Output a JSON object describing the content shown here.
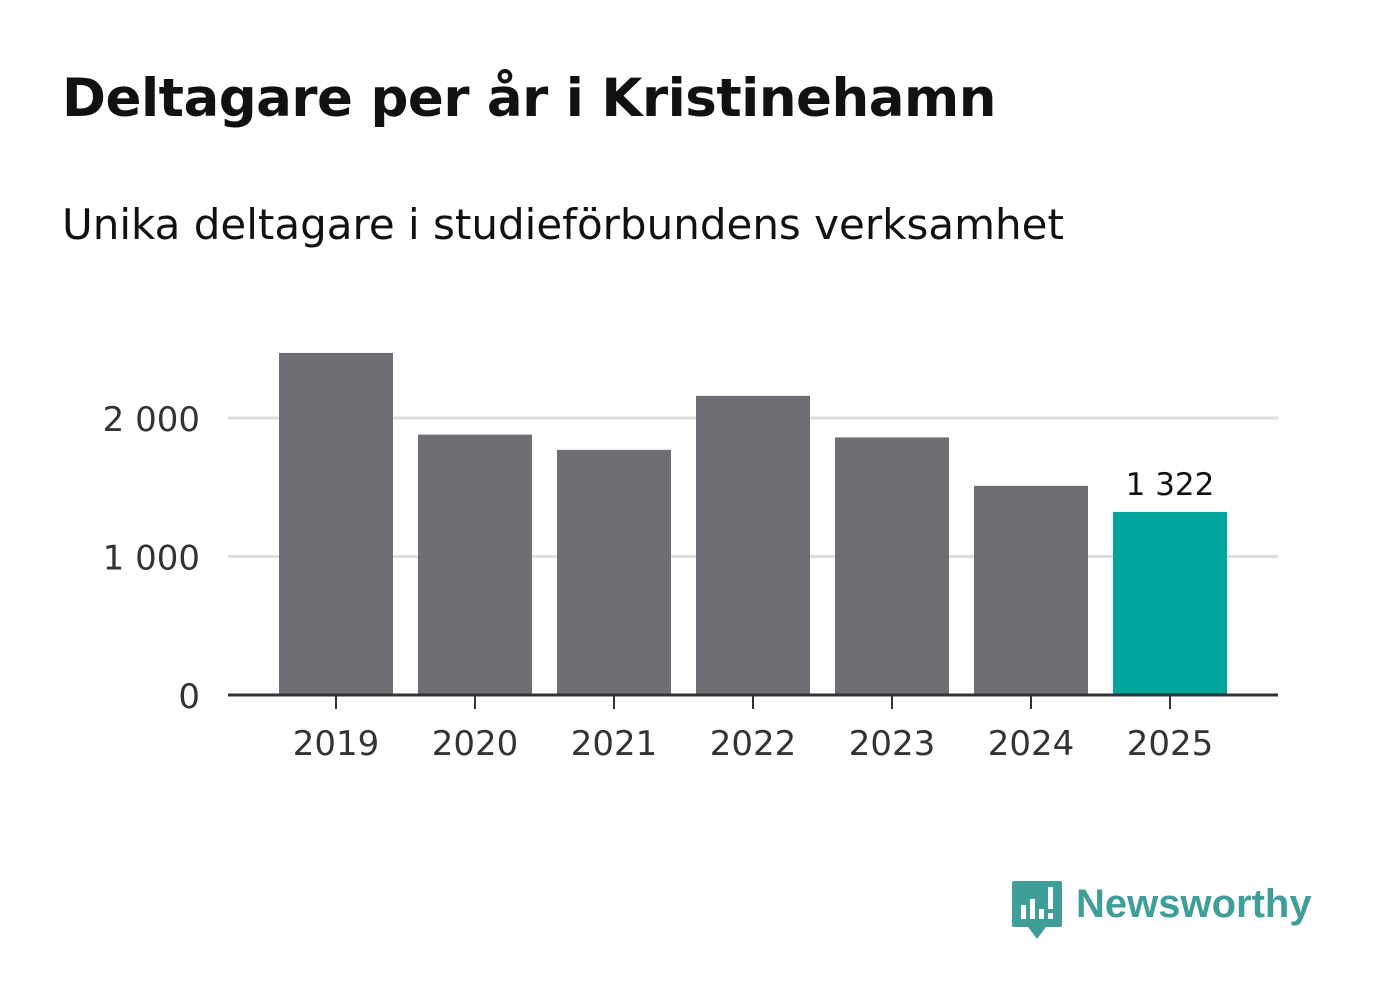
{
  "chart_data": {
    "type": "bar",
    "title": "Deltagare per år i Kristinehamn",
    "subtitle": "Unika deltagare i studieförbundens verksamhet",
    "categories": [
      "2019",
      "2020",
      "2021",
      "2022",
      "2023",
      "2024",
      "2025"
    ],
    "values": [
      2470,
      1880,
      1770,
      2160,
      1860,
      1510,
      1322
    ],
    "highlight_index": 6,
    "highlight_label": "1 322",
    "y_ticks": [
      {
        "value": 0,
        "label": "0"
      },
      {
        "value": 1000,
        "label": "1 000"
      },
      {
        "value": 2000,
        "label": "2 000"
      }
    ],
    "ylim": [
      0,
      2600
    ],
    "xlabel": "",
    "ylabel": "",
    "grid": true,
    "colors": {
      "bar": "#6f6e74",
      "highlight": "#00a59b",
      "grid": "#dddddd",
      "axis": "#333333",
      "tick_text": "#333333"
    }
  },
  "brand": {
    "name": "Newsworthy",
    "color": "#3f9e98",
    "icon": "bar-chart-speech-bubble-icon"
  }
}
